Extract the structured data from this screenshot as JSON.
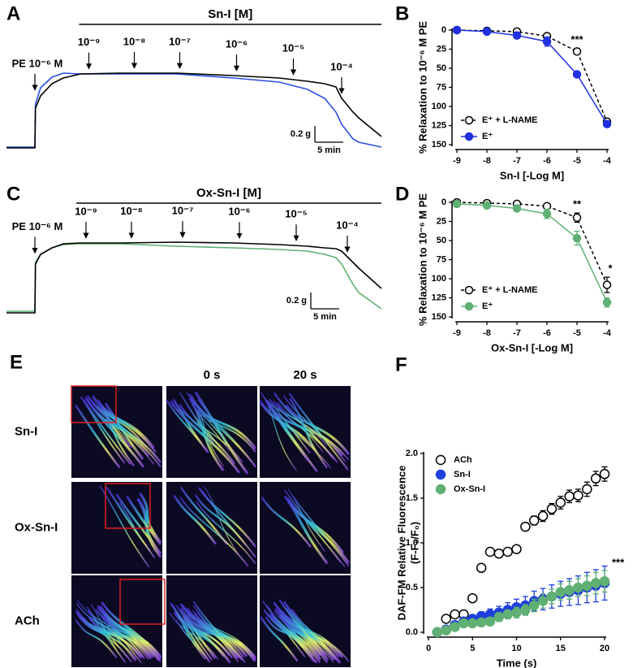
{
  "chart_data": [
    {
      "type": "line",
      "panel_label": "A",
      "title": "Sn-I [M]",
      "x": [
        0,
        5,
        5.1,
        6,
        8,
        10,
        13,
        20,
        30,
        40,
        48,
        53,
        56,
        58,
        59,
        61,
        62,
        66
      ],
      "xlim": [
        0,
        66
      ],
      "ylim": [
        0,
        1.2
      ],
      "series": [
        {
          "color": "#2a4fe0",
          "values": [
            0.02,
            0.02,
            0.55,
            0.75,
            0.88,
            0.93,
            0.92,
            0.92,
            0.92,
            0.87,
            0.82,
            0.73,
            0.62,
            0.45,
            0.3,
            0.12,
            0.08,
            0.02
          ]
        },
        {
          "color": "#000000",
          "values": [
            0.01,
            0.01,
            0.5,
            0.65,
            0.8,
            0.87,
            0.92,
            0.93,
            0.93,
            0.9,
            0.87,
            0.83,
            0.8,
            0.76,
            0.62,
            0.45,
            0.38,
            0.15
          ]
        }
      ],
      "annotations": [
        {
          "label": "PE 10⁻⁶ M",
          "x": 5
        },
        {
          "label": "10⁻⁹",
          "x": 14.5
        },
        {
          "label": "10⁻⁸",
          "x": 22.5
        },
        {
          "label": "10⁻⁷",
          "x": 30.5
        },
        {
          "label": "10⁻⁶",
          "x": 40.5
        },
        {
          "label": "10⁻⁵",
          "x": 50.5
        },
        {
          "label": "10⁻⁴",
          "x": 59
        }
      ],
      "scale_bar": {
        "x": 5,
        "y": 0.2,
        "x_label": "5 min",
        "y_label": "0.2 g"
      }
    },
    {
      "type": "line",
      "panel_label": "B",
      "x": [
        -9,
        -8,
        -7,
        -6,
        -5,
        -4
      ],
      "xlim": [
        -9,
        -4
      ],
      "xticks": [
        -9,
        -8,
        -7,
        -6,
        -5,
        -4
      ],
      "ylim": [
        0,
        150
      ],
      "yticks": [
        0,
        25,
        50,
        75,
        100,
        125,
        150
      ],
      "y_inverted": true,
      "xlabel": "Sn-I [-Log M]",
      "ylabel": [
        "% Relaxation to 10⁻⁶ M PE"
      ],
      "legend": "lower left",
      "series": [
        {
          "name": "E⁺ + L-NAME",
          "color": "#000000",
          "marker": "open",
          "dashed": true,
          "values": [
            0,
            1,
            2,
            8,
            28,
            120
          ],
          "errors": [
            0,
            1,
            2,
            3,
            4,
            4
          ]
        },
        {
          "name": "E⁺",
          "color": "#2030e0",
          "marker": "filled",
          "dashed": false,
          "values": [
            0,
            2,
            7,
            15,
            58,
            123
          ],
          "errors": [
            1,
            2,
            4,
            6,
            3,
            4
          ]
        }
      ],
      "annotations": [
        {
          "label": "***",
          "x": -5
        }
      ]
    },
    {
      "type": "line",
      "panel_label": "C",
      "title": "Ox-Sn-I [M]",
      "x": [
        0,
        5,
        5.1,
        6,
        8,
        10,
        13,
        20,
        30,
        40,
        48,
        53,
        56,
        58,
        59,
        61,
        62,
        66
      ],
      "xlim": [
        0,
        66
      ],
      "ylim": [
        0,
        1.2
      ],
      "series": [
        {
          "color": "#5fb072",
          "values": [
            0.02,
            0.02,
            0.62,
            0.72,
            0.8,
            0.84,
            0.85,
            0.85,
            0.82,
            0.8,
            0.78,
            0.76,
            0.72,
            0.68,
            0.6,
            0.35,
            0.25,
            0.05
          ]
        },
        {
          "color": "#000000",
          "values": [
            0,
            0,
            0.6,
            0.72,
            0.8,
            0.85,
            0.86,
            0.86,
            0.87,
            0.86,
            0.84,
            0.82,
            0.8,
            0.79,
            0.76,
            0.62,
            0.55,
            0.3
          ]
        }
      ],
      "annotations": [
        {
          "label": "PE 10⁻⁶ M",
          "x": 5
        },
        {
          "label": "10⁻⁹",
          "x": 14
        },
        {
          "label": "10⁻⁸",
          "x": 22
        },
        {
          "label": "10⁻⁷",
          "x": 31
        },
        {
          "label": "10⁻⁶",
          "x": 41
        },
        {
          "label": "10⁻⁵",
          "x": 51
        },
        {
          "label": "10⁻⁴",
          "x": 60
        }
      ],
      "scale_bar": {
        "x": 5,
        "y": 0.2,
        "x_label": "5 min",
        "y_label": "0.2 g"
      }
    },
    {
      "type": "line",
      "panel_label": "D",
      "x": [
        -9,
        -8,
        -7,
        -6,
        -5,
        -4
      ],
      "xlim": [
        -9,
        -4
      ],
      "xticks": [
        -9,
        -8,
        -7,
        -6,
        -5,
        -4
      ],
      "ylim": [
        0,
        150
      ],
      "yticks": [
        0,
        25,
        50,
        75,
        100,
        125,
        150
      ],
      "y_inverted": true,
      "xlabel": "Ox-Sn-I [-Log M]",
      "ylabel": [
        "% Relaxation to 10⁻⁶ M PE"
      ],
      "legend": "lower left",
      "series": [
        {
          "name": "E⁺ + L-NAME",
          "color": "#000000",
          "marker": "open",
          "dashed": true,
          "values": [
            0,
            1,
            2,
            5,
            20,
            108
          ],
          "errors": [
            0,
            1,
            2,
            3,
            6,
            10
          ]
        },
        {
          "name": "E⁺",
          "color": "#5fb072",
          "marker": "filled",
          "dashed": false,
          "values": [
            2,
            4,
            8,
            15,
            47,
            131
          ],
          "errors": [
            1,
            1,
            3,
            6,
            9,
            6
          ]
        }
      ],
      "annotations": [
        {
          "label": "**",
          "x": -5
        },
        {
          "label": "*",
          "x": -4
        }
      ]
    },
    {
      "type": "scatter",
      "panel_label": "F",
      "x": [
        1,
        2,
        3,
        4,
        5,
        6,
        7,
        8,
        9,
        10,
        11,
        12,
        13,
        14,
        15,
        16,
        17,
        18,
        19,
        20
      ],
      "xlim": [
        0,
        20
      ],
      "xticks": [
        0,
        5,
        10,
        15,
        20
      ],
      "ylim": [
        0,
        2
      ],
      "yticks": [
        {
          "value": 0,
          "label": "0.0"
        },
        {
          "value": 0.5,
          "label": "0.5"
        },
        {
          "value": 1,
          "label": "1.0"
        },
        {
          "value": 1.5,
          "label": "1.5"
        },
        {
          "value": 2,
          "label": "2.0"
        }
      ],
      "xlabel": "Time (s)",
      "ylabel": [
        "DAF-FM Relative Fluorescence",
        "(F-F₀/F₀)"
      ],
      "legend": "upper left",
      "series": [
        {
          "name": "ACh",
          "color": "#000000",
          "marker": "open",
          "values": [
            0,
            0.15,
            0.2,
            0.2,
            0.38,
            0.72,
            0.9,
            0.88,
            0.9,
            0.93,
            1.18,
            1.25,
            1.3,
            1.38,
            1.45,
            1.52,
            1.53,
            1.6,
            1.72,
            1.77
          ],
          "errors": [
            0,
            0.02,
            0.02,
            0.02,
            0.02,
            0.02,
            0.02,
            0.02,
            0.02,
            0.02,
            0.04,
            0.05,
            0.06,
            0.06,
            0.07,
            0.07,
            0.07,
            0.08,
            0.08,
            0.08
          ]
        },
        {
          "name": "Sn-I",
          "color": "#1f3fdc",
          "marker": "filled",
          "values": [
            0,
            0.03,
            0.08,
            0.12,
            0.15,
            0.18,
            0.2,
            0.22,
            0.25,
            0.28,
            0.3,
            0.35,
            0.37,
            0.4,
            0.43,
            0.45,
            0.47,
            0.5,
            0.52,
            0.55
          ],
          "errors": [
            0,
            0.01,
            0.02,
            0.03,
            0.04,
            0.05,
            0.06,
            0.07,
            0.08,
            0.09,
            0.1,
            0.11,
            0.12,
            0.13,
            0.14,
            0.15,
            0.16,
            0.17,
            0.18,
            0.19
          ]
        },
        {
          "name": "Ox-Sn-I",
          "color": "#5fb072",
          "marker": "filled",
          "values": [
            0,
            0.02,
            0.06,
            0.1,
            0.1,
            0.11,
            0.12,
            0.17,
            0.2,
            0.22,
            0.25,
            0.3,
            0.35,
            0.4,
            0.45,
            0.47,
            0.5,
            0.52,
            0.55,
            0.57
          ],
          "errors": [
            0,
            0.01,
            0.02,
            0.02,
            0.03,
            0.03,
            0.04,
            0.05,
            0.05,
            0.06,
            0.06,
            0.07,
            0.08,
            0.08,
            0.09,
            0.1,
            0.1,
            0.11,
            0.12,
            0.12
          ]
        }
      ],
      "annotations": [
        {
          "label": "***",
          "x": 20
        }
      ]
    }
  ],
  "image_grid": {
    "panel_label": "E",
    "column_labels": [
      "0 s",
      "20 s"
    ],
    "row_labels": [
      "Sn-I",
      "Ox-Sn-I",
      "ACh"
    ]
  }
}
